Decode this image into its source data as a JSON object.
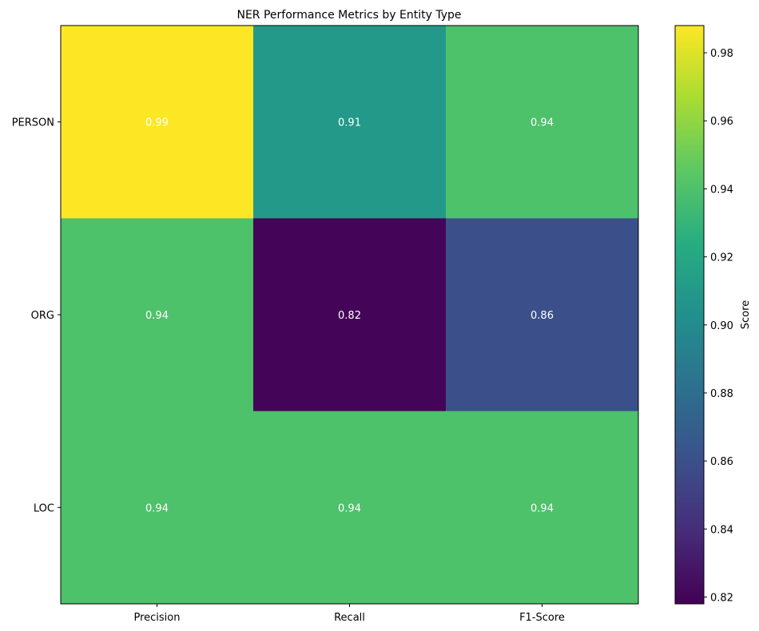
{
  "chart_data": {
    "type": "heatmap",
    "title": "NER Performance Metrics by Entity Type",
    "columns": [
      "Precision",
      "Recall",
      "F1-Score"
    ],
    "rows": [
      "PERSON",
      "ORG",
      "LOC"
    ],
    "values": [
      [
        0.99,
        0.91,
        0.94
      ],
      [
        0.94,
        0.82,
        0.86
      ],
      [
        0.94,
        0.94,
        0.94
      ]
    ],
    "cell_labels": [
      [
        "0.99",
        "0.91",
        "0.94"
      ],
      [
        "0.94",
        "0.82",
        "0.86"
      ],
      [
        "0.94",
        "0.94",
        "0.94"
      ]
    ],
    "colorbar": {
      "label": "Score",
      "colormap": "viridis",
      "range": [
        0.818,
        0.988
      ],
      "ticks": [
        "0.82",
        "0.84",
        "0.86",
        "0.88",
        "0.90",
        "0.92",
        "0.94",
        "0.96",
        "0.98"
      ]
    },
    "annotation_color": "#ffffff"
  }
}
